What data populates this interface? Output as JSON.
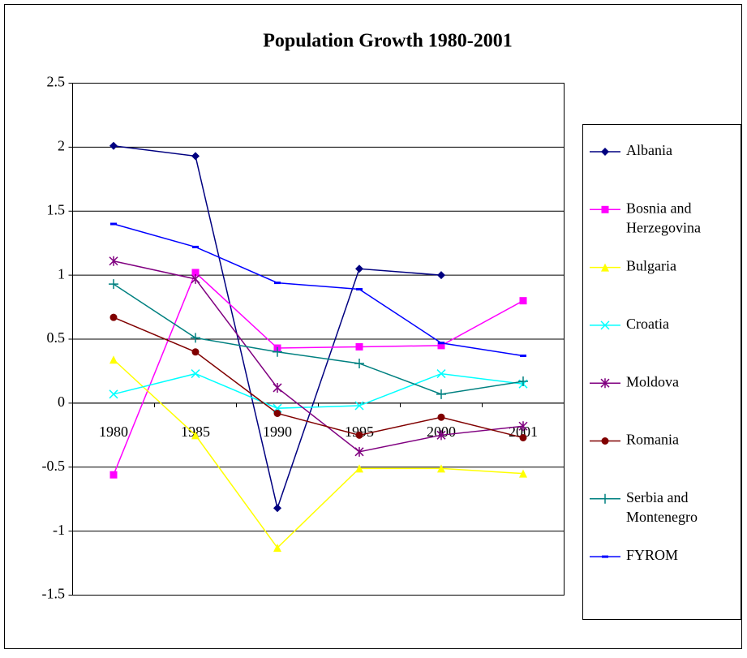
{
  "chart_data": {
    "type": "line",
    "title": "Population Growth 1980-2001",
    "categories": [
      "1980",
      "1985",
      "1990",
      "1995",
      "2000",
      "2001"
    ],
    "ylim": [
      -1.5,
      2.5
    ],
    "yticks": [
      -1.5,
      -1,
      -0.5,
      0,
      0.5,
      1,
      1.5,
      2,
      2.5
    ],
    "grid": true,
    "legend": "right",
    "series": [
      {
        "name": "Albania",
        "color": "#000080",
        "marker": "diamond",
        "values": [
          2.01,
          1.93,
          -0.82,
          1.05,
          1.0,
          null
        ]
      },
      {
        "name": "Bosnia and Herzegovina",
        "color": "#ff00ff",
        "marker": "square",
        "values": [
          -0.56,
          1.02,
          0.43,
          0.44,
          0.45,
          0.8
        ]
      },
      {
        "name": "Bulgaria",
        "color": "#ffff00",
        "marker": "triangle",
        "values": [
          0.34,
          -0.25,
          -1.13,
          -0.51,
          -0.51,
          -0.55
        ]
      },
      {
        "name": "Croatia",
        "color": "#00ffff",
        "marker": "x",
        "values": [
          0.07,
          0.23,
          -0.04,
          -0.02,
          0.23,
          0.15
        ]
      },
      {
        "name": "Moldova",
        "color": "#800080",
        "marker": "star",
        "values": [
          1.11,
          0.97,
          0.12,
          -0.38,
          -0.25,
          -0.18
        ]
      },
      {
        "name": "Romania",
        "color": "#800000",
        "marker": "circle",
        "values": [
          0.67,
          0.4,
          -0.08,
          -0.25,
          -0.11,
          -0.27
        ]
      },
      {
        "name": "Serbia and Montenegro",
        "color": "#008080",
        "marker": "plus",
        "values": [
          0.93,
          0.51,
          0.4,
          0.31,
          0.07,
          0.17
        ]
      },
      {
        "name": "FYROM",
        "color": "#0000ff",
        "marker": "dash",
        "values": [
          1.4,
          1.22,
          0.94,
          0.89,
          0.47,
          0.37
        ]
      }
    ]
  }
}
